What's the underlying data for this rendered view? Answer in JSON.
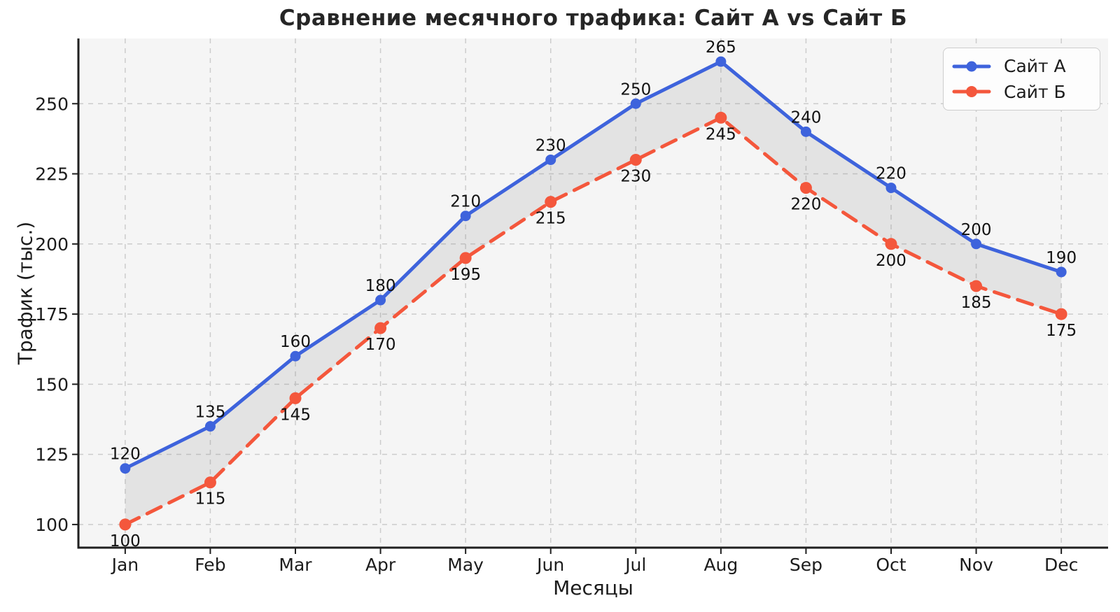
{
  "chart_data": {
    "type": "line",
    "title": "Сравнение месячного трафика: Сайт А vs Сайт Б",
    "xlabel": "Месяцы",
    "ylabel": "Трафик (тыс.)",
    "categories": [
      "Jan",
      "Feb",
      "Mar",
      "Apr",
      "May",
      "Jun",
      "Jul",
      "Aug",
      "Sep",
      "Oct",
      "Nov",
      "Dec"
    ],
    "series": [
      {
        "name": "Сайт А",
        "color": "#3E63DC",
        "line_style": "solid",
        "marker": "circle",
        "marker_radius": 7.5,
        "label_position": "above",
        "values": [
          120,
          135,
          160,
          180,
          210,
          230,
          250,
          265,
          240,
          220,
          200,
          190
        ]
      },
      {
        "name": "Сайт Б",
        "color": "#F4573C",
        "line_style": "dashed",
        "marker": "circle",
        "marker_radius": 8.5,
        "label_position": "below",
        "values": [
          100,
          115,
          145,
          170,
          195,
          215,
          230,
          245,
          220,
          200,
          185,
          175
        ]
      }
    ],
    "point_labels_shown": true,
    "fill_between": {
      "color": "#808080",
      "opacity": 0.15
    },
    "yticks": [
      100,
      125,
      150,
      175,
      200,
      225,
      250
    ],
    "ylim": [
      91.75,
      273.25
    ],
    "xlim": [
      -0.55,
      11.55
    ],
    "grid": true,
    "grid_style": "dashed",
    "legend_position": "upper right",
    "colors": {
      "plot_bg": "#F5F5F5",
      "grid": "#CCCCCC",
      "spine": "#202020",
      "tick_text": "#1C1C1C",
      "annotation_text": "#111111"
    }
  }
}
